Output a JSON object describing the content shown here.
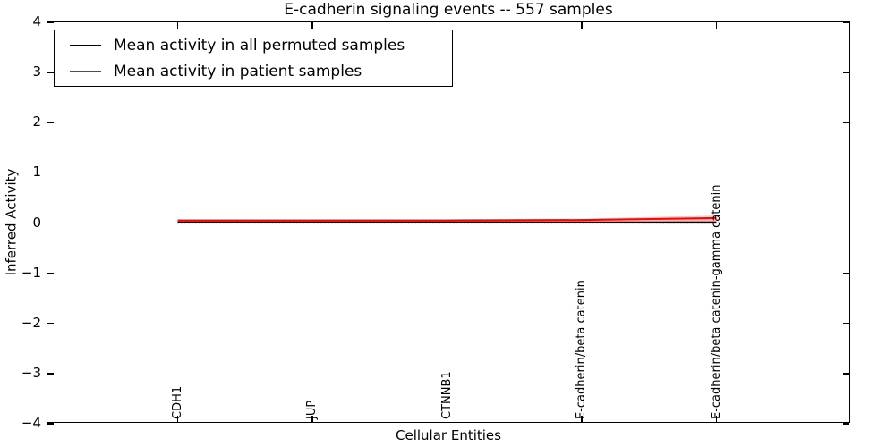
{
  "chart_data": {
    "type": "line",
    "title": "E-cadherin signaling events -- 557 samples",
    "xlabel": "Cellular Entities",
    "ylabel": "Inferred Activity",
    "ylim": [
      -4,
      4
    ],
    "yticks": [
      {
        "value": 4,
        "label": "4"
      },
      {
        "value": 3,
        "label": "3"
      },
      {
        "value": 2,
        "label": "2"
      },
      {
        "value": 1,
        "label": "1"
      },
      {
        "value": 0,
        "label": "0"
      },
      {
        "value": -1,
        "label": "−1"
      },
      {
        "value": -2,
        "label": "−2"
      },
      {
        "value": -3,
        "label": "−3"
      },
      {
        "value": -4,
        "label": "−4"
      }
    ],
    "categories": [
      "CDH1",
      "JUP",
      "CTNNB1",
      "E-cadherin/beta catenin",
      "E-cadherin/beta catenin-gamma catenin"
    ],
    "series": [
      {
        "name": "Mean activity in all permuted samples",
        "color": "#000000",
        "style": "solid",
        "line_width": 1.3,
        "values": [
          0.02,
          0.02,
          0.02,
          0.02,
          0.02
        ]
      },
      {
        "name": "Mean activity in patient samples",
        "color": "#ff0000",
        "style": "solid",
        "line_width": 2,
        "values": [
          0.05,
          0.05,
          0.05,
          0.06,
          0.1
        ]
      }
    ],
    "patient_band": {
      "color": "#ff0000",
      "opacity": 0.25,
      "upper": [
        0.08,
        0.08,
        0.08,
        0.09,
        0.15
      ],
      "lower": [
        -0.01,
        -0.01,
        -0.01,
        -0.01,
        -0.02
      ]
    },
    "zero_line": {
      "value": 0,
      "style": "dotted",
      "color": "#000000"
    },
    "legend": {
      "position": "upper left"
    },
    "grid": false
  }
}
